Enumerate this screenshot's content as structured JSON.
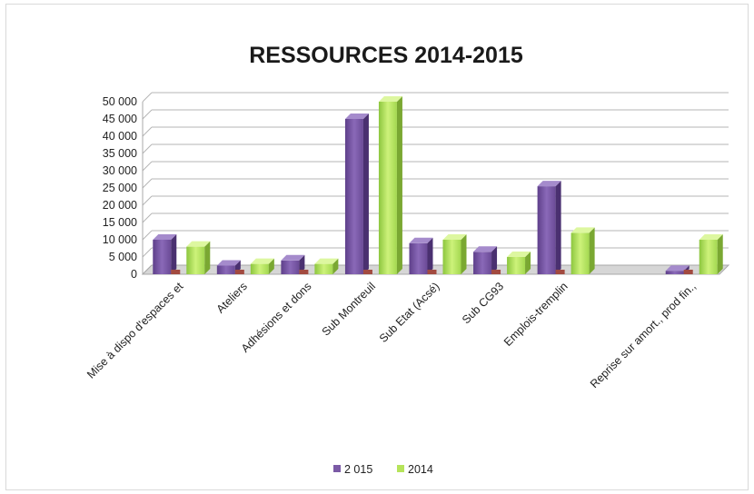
{
  "chart_data": {
    "type": "bar",
    "title": "RESSOURCES 2014-2015",
    "categories": [
      "Mise à dispo d'espaces et",
      "Ateliers",
      "Adhésions et dons",
      "Sub Montreuil",
      "Sub Etat (Acsé)",
      "Sub CG93",
      "Emplois-tremplin",
      "",
      "Reprise sur amort., prod fin.,"
    ],
    "series": [
      {
        "name": "2 015",
        "color": "#7b5aa6",
        "values": [
          10000,
          2500,
          4000,
          45000,
          9000,
          6500,
          25500,
          0,
          1000
        ]
      },
      {
        "name": "2014",
        "color": "#b6e45a",
        "values": [
          8000,
          3000,
          3000,
          50000,
          10000,
          5000,
          12000,
          0,
          10000
        ]
      }
    ],
    "yticks": [
      "0",
      "5 000",
      "10 000",
      "15 000",
      "20 000",
      "25 000",
      "30 000",
      "35 000",
      "40 000",
      "45 000",
      "50 000"
    ],
    "ylim": [
      0,
      50000
    ],
    "legend_position": "bottom",
    "grid": true
  }
}
